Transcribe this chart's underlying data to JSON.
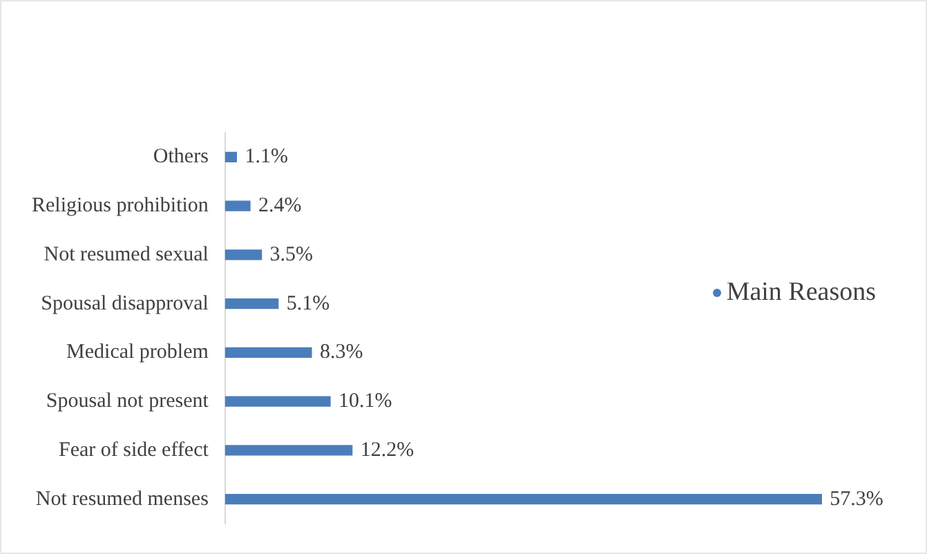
{
  "chart_data": {
    "type": "bar",
    "orientation": "horizontal",
    "legend": "right",
    "categories": [
      "Others",
      "Religious prohibition",
      "Not resumed sexual",
      "Spousal disapproval",
      "Medical problem",
      "Spousal not present",
      "Fear of side effect",
      "Not resumed menses"
    ],
    "series": [
      {
        "name": "Main Reasons",
        "color": "#4a7ebb",
        "values": [
          1.1,
          2.4,
          3.5,
          5.1,
          8.3,
          10.1,
          12.2,
          57.3
        ],
        "value_labels": [
          "1.1%",
          "2.4%",
          "3.5%",
          "5.1%",
          "8.3%",
          "10.1%",
          "12.2%",
          "57.3%"
        ]
      }
    ]
  }
}
